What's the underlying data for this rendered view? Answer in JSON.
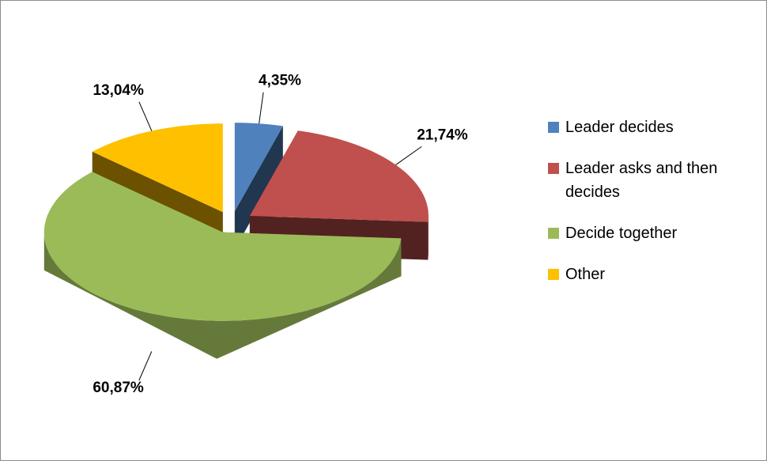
{
  "chart_data": {
    "type": "pie",
    "categories": [
      "Leader decides",
      "Leader asks and then decides",
      "Decide together",
      "Other"
    ],
    "values": [
      4.35,
      21.74,
      60.87,
      13.04
    ],
    "value_labels": [
      "4,35%",
      "21,74%",
      "60,87%",
      "13,04%"
    ],
    "colors": [
      "#4f81bd",
      "#c0504d",
      "#9bbb59",
      "#ffc000"
    ],
    "legend": "right"
  }
}
